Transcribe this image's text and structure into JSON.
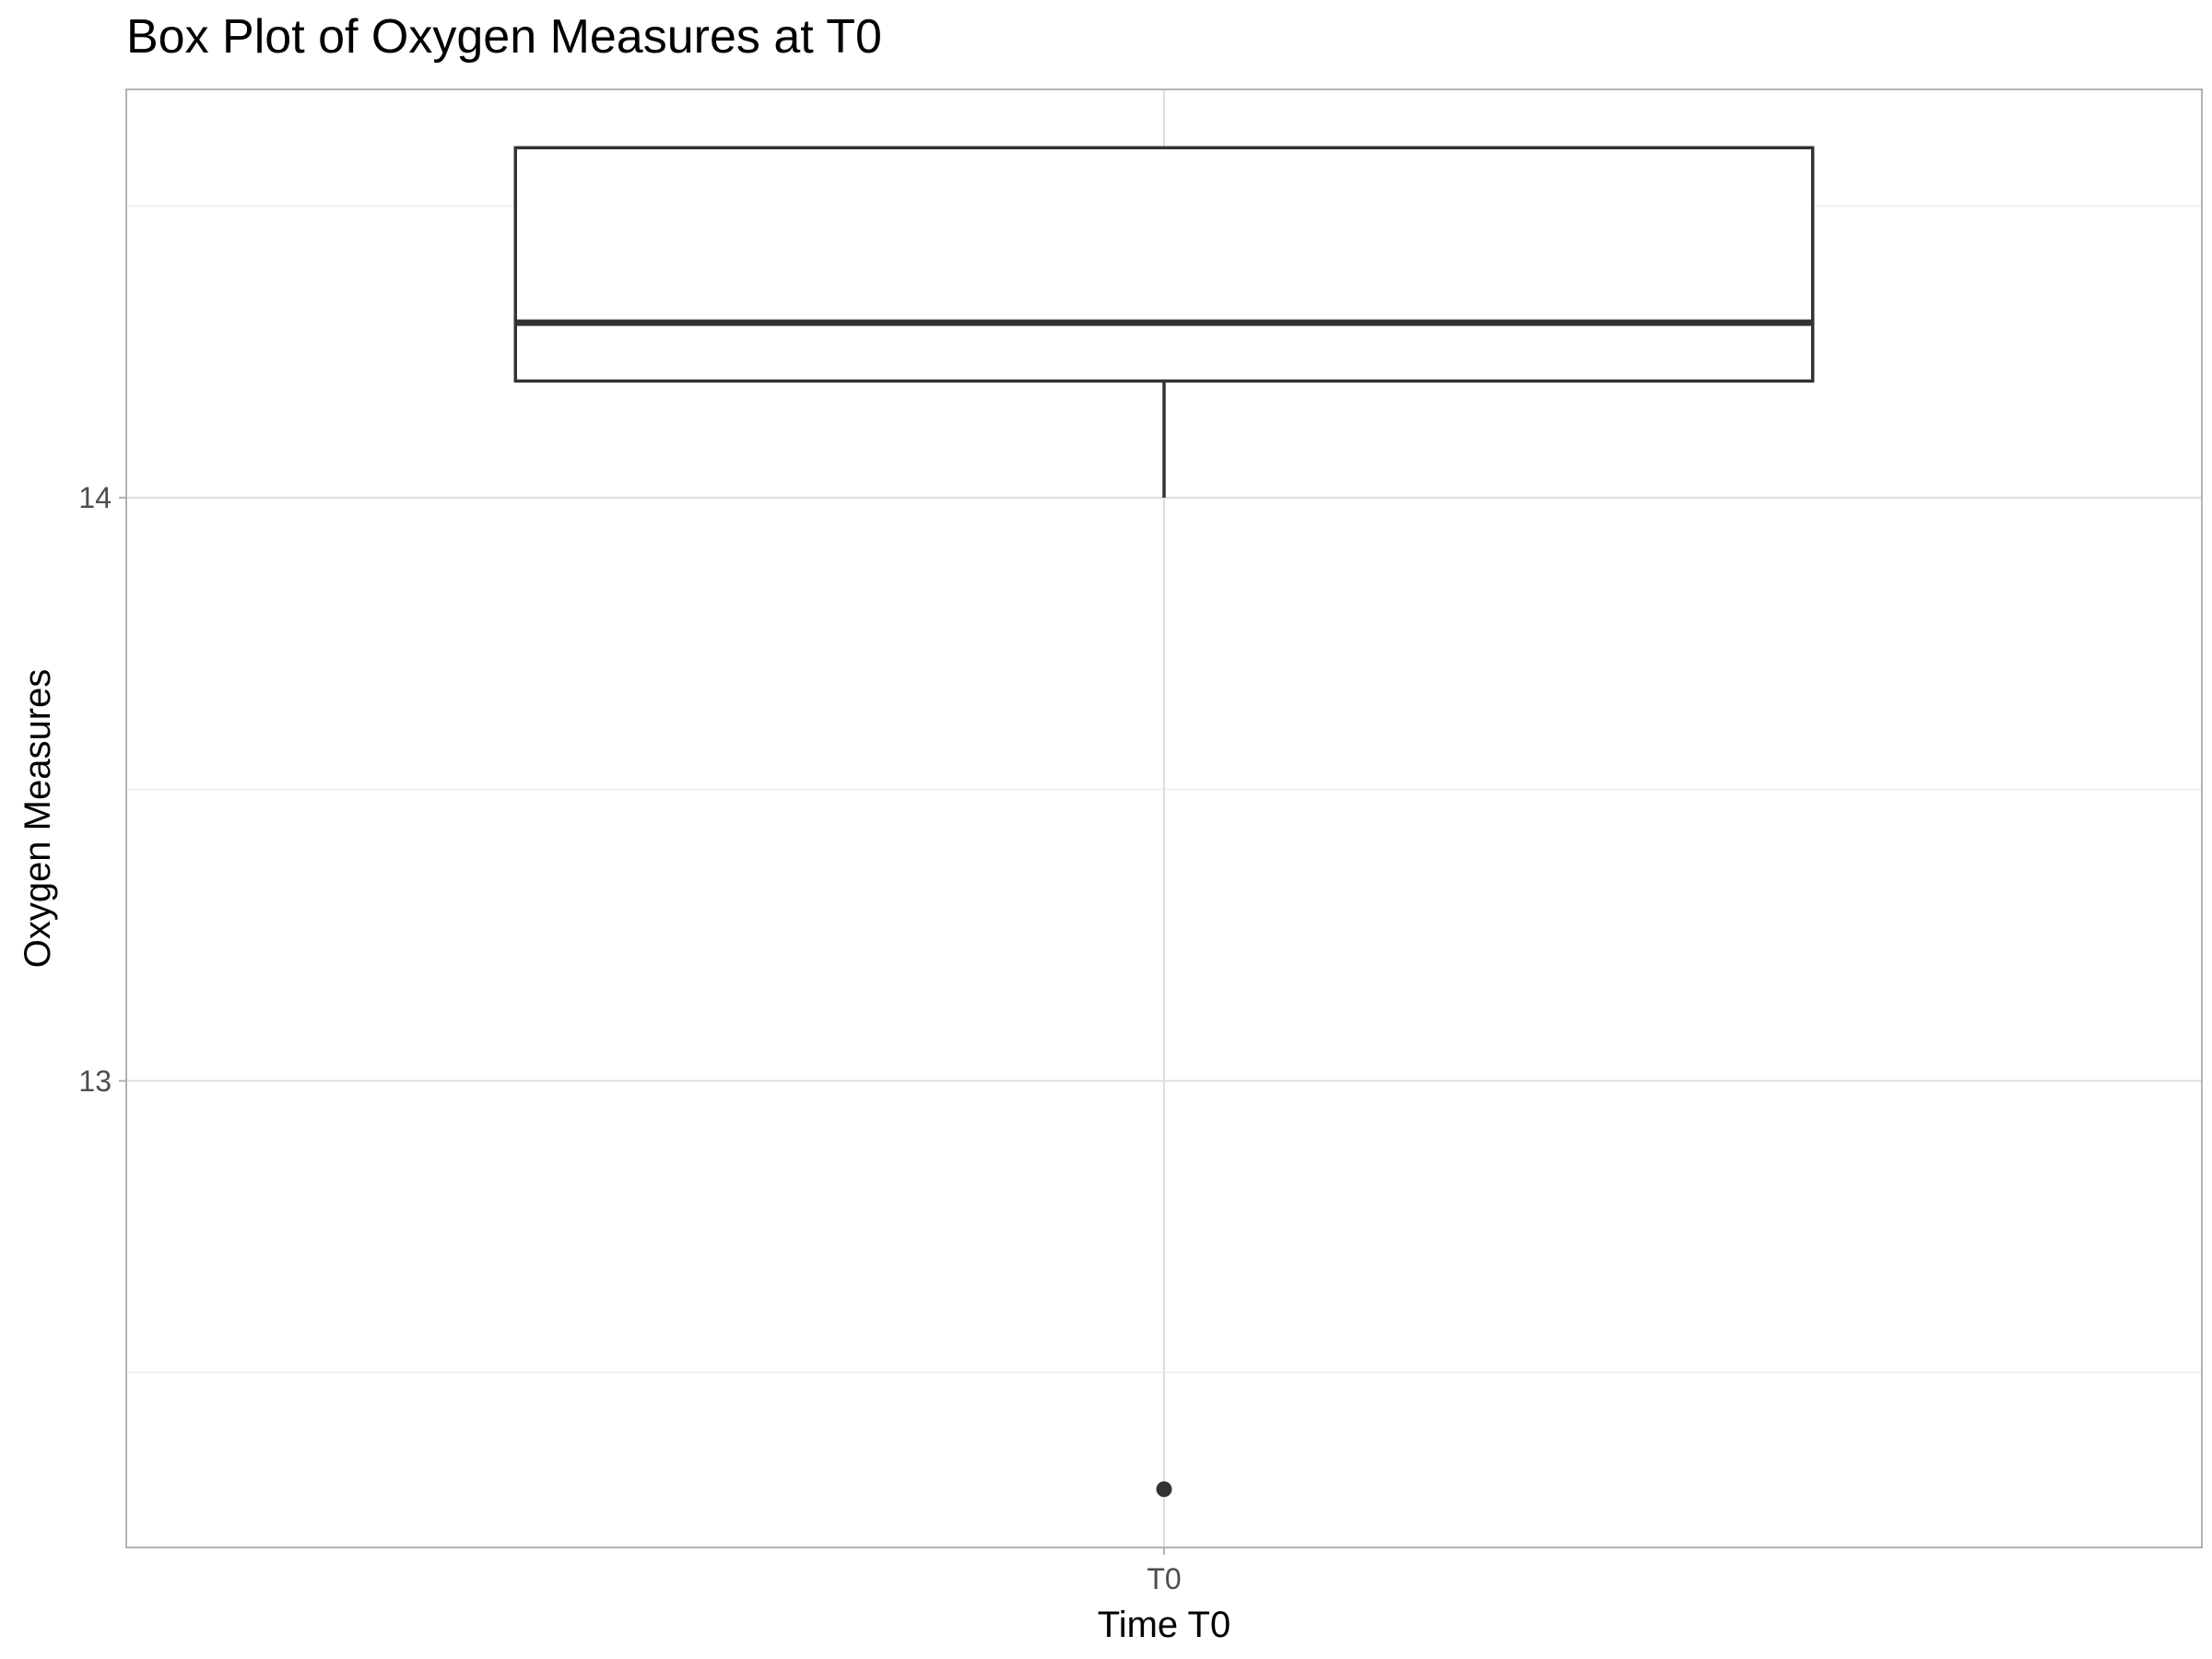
{
  "chart_data": {
    "type": "box",
    "title": "Box Plot of Oxygen Measures at T0",
    "xlabel": "Time T0",
    "ylabel": "Oxygen Measures",
    "categories": [
      "T0"
    ],
    "y_ticks": [
      13,
      14
    ],
    "y_minor_ticks": [
      12.5,
      13.5,
      14.5
    ],
    "ylim": [
      12.2,
      14.7
    ],
    "boxes": [
      {
        "category": "T0",
        "whisker_low": 14.0,
        "q1": 14.2,
        "median": 14.3,
        "q3": 14.6,
        "whisker_high": 14.6,
        "outliers": [
          12.3
        ]
      }
    ],
    "grid": true,
    "legend": "none",
    "colors": {
      "box_stroke": "#333333",
      "grid": "#dedede",
      "panel_border": "#b3b3b3",
      "point": "#333333"
    }
  }
}
